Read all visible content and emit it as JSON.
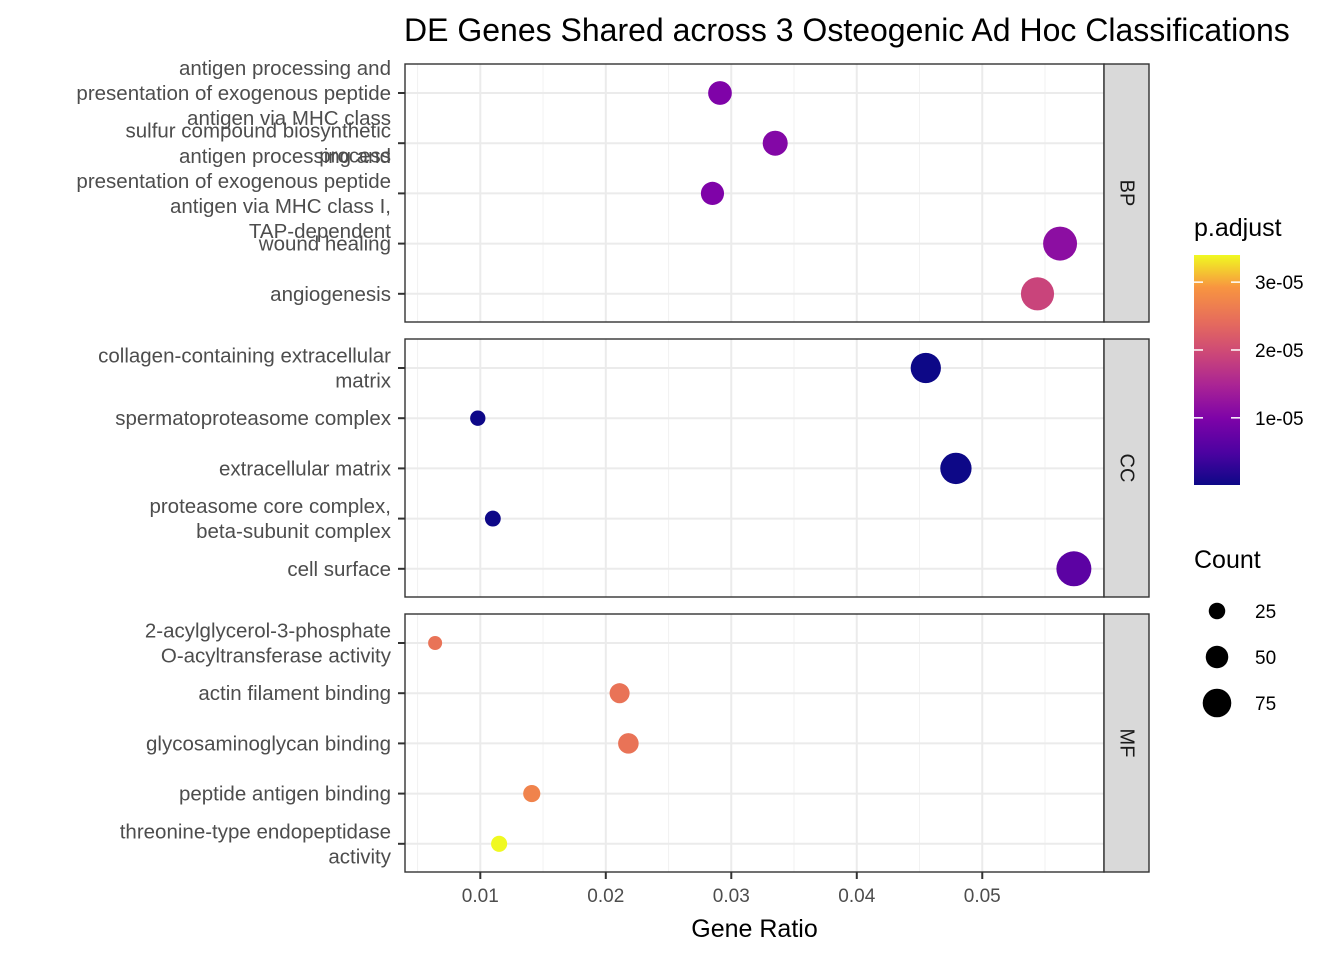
{
  "chart_data": {
    "type": "scatter",
    "title": "DE Genes Shared across 3 Osteogenic Ad Hoc Classifications",
    "xlabel": "Gene Ratio",
    "ylabel": "",
    "xlim": [
      0.004,
      0.0597
    ],
    "xticks": [
      0.01,
      0.02,
      0.03,
      0.04,
      0.05
    ],
    "xtick_labels": [
      "0.01",
      "0.02",
      "0.03",
      "0.04",
      "0.05"
    ],
    "grid": true,
    "color_scale": {
      "name": "p.adjust",
      "palette": "plasma",
      "min": 1e-07,
      "max": 3.4e-05,
      "ticks": [
        1e-05,
        2e-05,
        3e-05
      ],
      "tick_labels": [
        "1e-05",
        "2e-05",
        "3e-05"
      ]
    },
    "size_scale": {
      "name": "Count",
      "min": 10,
      "max": 90,
      "ticks": [
        25,
        50,
        75
      ],
      "tick_labels": [
        "25",
        "50",
        "75"
      ]
    },
    "legend_position": "right",
    "panels": [
      {
        "facet": "BP",
        "terms": [
          {
            "label": "antigen processing and presentation of exogenous peptide antigen via MHC class",
            "x": 0.0291,
            "p_adjust": 1e-05,
            "count": 47
          },
          {
            "label": "sulfur compound biosynthetic process",
            "x": 0.0335,
            "p_adjust": 1.05e-05,
            "count": 52
          },
          {
            "label": "antigen processing and presentation of exogenous peptide antigen via MHC class I, TAP-dependent",
            "x": 0.0285,
            "p_adjust": 1e-05,
            "count": 45
          },
          {
            "label": "wound healing",
            "x": 0.0562,
            "p_adjust": 1.15e-05,
            "count": 86
          },
          {
            "label": "angiogenesis",
            "x": 0.0544,
            "p_adjust": 1.9e-05,
            "count": 83
          }
        ]
      },
      {
        "facet": "CC",
        "terms": [
          {
            "label": "collagen-containing extracellular matrix",
            "x": 0.0455,
            "p_adjust": 1e-07,
            "count": 72
          },
          {
            "label": "spermatoproteasome complex",
            "x": 0.0098,
            "p_adjust": 2e-07,
            "count": 15
          },
          {
            "label": "extracellular matrix",
            "x": 0.0479,
            "p_adjust": 1e-07,
            "count": 76
          },
          {
            "label": "proteasome core complex, beta-subunit complex",
            "x": 0.011,
            "p_adjust": 2e-07,
            "count": 17
          },
          {
            "label": "cell surface",
            "x": 0.0573,
            "p_adjust": 6.5e-06,
            "count": 90
          }
        ]
      },
      {
        "facet": "MF",
        "terms": [
          {
            "label": "2-acylglycerol-3-phosphate O-acyltransferase activity",
            "x": 0.0064,
            "p_adjust": 2.5e-05,
            "count": 10
          },
          {
            "label": "actin filament binding",
            "x": 0.0211,
            "p_adjust": 2.5e-05,
            "count": 33
          },
          {
            "label": "glycosaminoglycan binding",
            "x": 0.0218,
            "p_adjust": 2.5e-05,
            "count": 35
          },
          {
            "label": "peptide antigen binding",
            "x": 0.0141,
            "p_adjust": 2.7e-05,
            "count": 22
          },
          {
            "label": "threonine-type endopeptidase activity",
            "x": 0.0115,
            "p_adjust": 3.4e-05,
            "count": 18
          }
        ]
      }
    ]
  }
}
